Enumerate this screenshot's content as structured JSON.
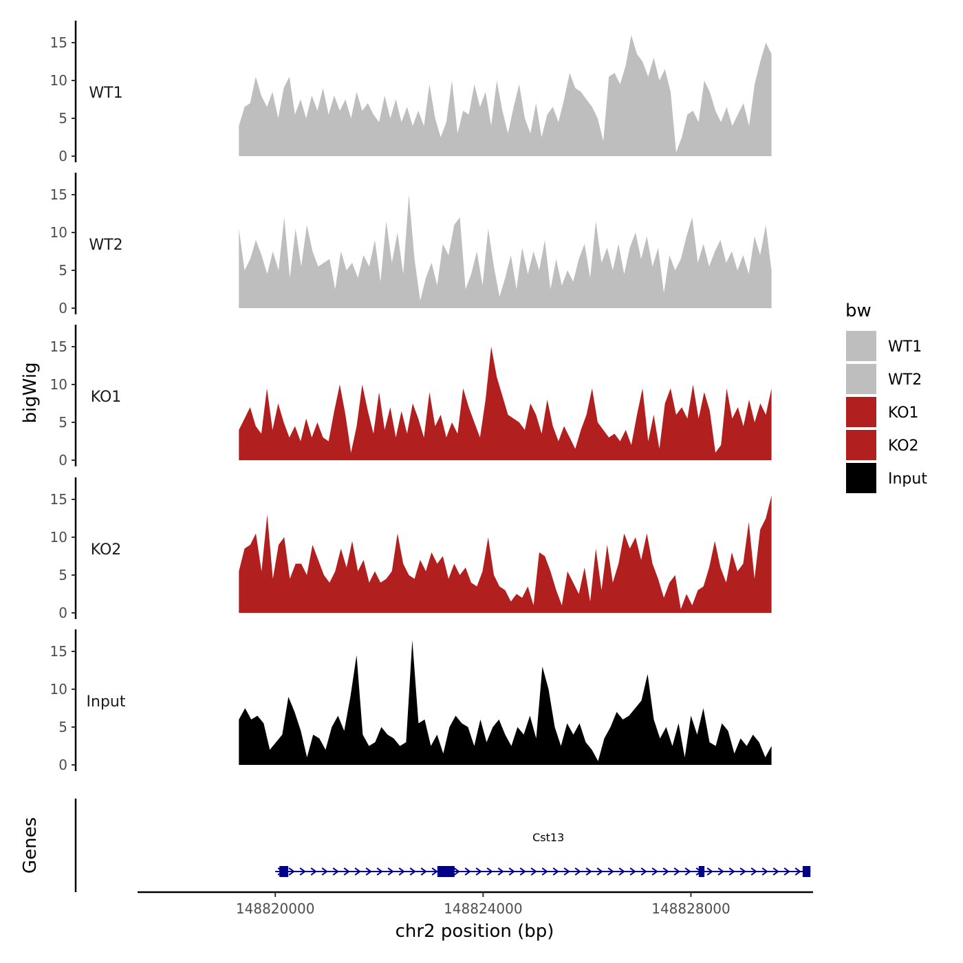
{
  "chart_data": {
    "type": "area",
    "title": "",
    "ylabel": "bigWig",
    "xlabel": "chr2 position (bp)",
    "xlim": [
      148817350,
      148830350
    ],
    "ylim": [
      0,
      17
    ],
    "y_ticks": [
      0,
      5,
      10,
      15
    ],
    "x_ticks": [
      148820000,
      148824000,
      148828000
    ],
    "x_tick_labels": [
      "148820000",
      "148824000",
      "148828000"
    ],
    "region_start": 148819300,
    "region_end": 148829550,
    "tracks": [
      {
        "name": "WT1",
        "color": "#bebebe",
        "values": [
          4.0,
          6.5,
          7.0,
          10.5,
          8.0,
          6.5,
          8.5,
          5.0,
          9.0,
          10.5,
          5.5,
          7.5,
          5.0,
          8.0,
          6.0,
          9.0,
          5.5,
          8.0,
          6.0,
          7.5,
          5.0,
          8.5,
          6.0,
          7.0,
          5.5,
          4.5,
          8.0,
          5.0,
          7.5,
          4.5,
          6.5,
          4.0,
          6.0,
          4.0,
          9.5,
          5.0,
          2.5,
          4.5,
          10.0,
          3.0,
          6.0,
          5.5,
          9.5,
          6.5,
          8.5,
          4.0,
          10.0,
          6.0,
          3.0,
          6.5,
          9.5,
          5.0,
          3.0,
          7.0,
          2.5,
          5.5,
          6.5,
          4.5,
          7.5,
          11.0,
          9.0,
          8.5,
          7.5,
          6.5,
          5.0,
          2.0,
          10.5,
          11.0,
          9.5,
          12.0,
          16.0,
          13.5,
          12.5,
          10.5,
          13.0,
          10.0,
          11.5,
          8.5,
          0.5,
          2.5,
          5.5,
          6.0,
          4.5,
          10.0,
          8.5,
          6.0,
          4.5,
          6.5,
          4.0,
          5.5,
          7.0,
          4.0,
          9.5,
          12.5,
          15.0,
          13.5
        ]
      },
      {
        "name": "WT2",
        "color": "#bebebe",
        "values": [
          10.5,
          5.0,
          6.5,
          9.0,
          7.0,
          4.5,
          7.5,
          5.0,
          12.0,
          4.0,
          10.5,
          5.5,
          11.0,
          7.5,
          5.5,
          6.0,
          6.5,
          2.5,
          7.5,
          5.0,
          6.0,
          4.0,
          7.0,
          5.5,
          9.0,
          3.5,
          11.5,
          6.0,
          10.0,
          4.5,
          15.0,
          6.5,
          1.0,
          4.0,
          6.0,
          3.0,
          8.5,
          7.0,
          11.0,
          12.0,
          2.5,
          4.5,
          7.5,
          3.0,
          10.5,
          5.5,
          1.5,
          4.0,
          7.0,
          2.5,
          8.0,
          4.5,
          7.5,
          5.0,
          9.0,
          2.5,
          6.5,
          3.0,
          5.0,
          3.5,
          6.5,
          8.5,
          4.0,
          11.5,
          6.0,
          8.0,
          5.0,
          8.5,
          4.5,
          8.0,
          10.0,
          6.5,
          9.5,
          5.5,
          8.0,
          2.0,
          7.0,
          5.0,
          6.5,
          9.5,
          12.0,
          6.0,
          8.5,
          5.5,
          7.5,
          9.0,
          6.0,
          7.5,
          5.0,
          7.0,
          4.5,
          9.5,
          7.0,
          11.0,
          5.0
        ]
      },
      {
        "name": "KO1",
        "color": "#b21f1f",
        "values": [
          4.0,
          5.5,
          7.0,
          4.5,
          3.5,
          9.5,
          4.0,
          7.5,
          5.0,
          3.0,
          4.5,
          2.5,
          5.5,
          3.0,
          5.0,
          3.0,
          2.5,
          6.5,
          10.0,
          6.0,
          1.0,
          4.5,
          10.0,
          6.5,
          3.5,
          9.0,
          4.0,
          7.0,
          3.0,
          6.5,
          3.5,
          7.5,
          5.5,
          3.0,
          9.0,
          4.5,
          6.0,
          3.0,
          5.0,
          3.5,
          9.5,
          7.0,
          5.0,
          3.0,
          8.0,
          15.0,
          11.0,
          8.5,
          6.0,
          5.5,
          5.0,
          4.0,
          7.5,
          6.0,
          3.5,
          8.0,
          4.5,
          2.5,
          4.5,
          3.0,
          1.5,
          4.0,
          6.0,
          9.5,
          5.0,
          4.0,
          3.0,
          3.5,
          2.5,
          4.0,
          2.0,
          6.0,
          9.5,
          2.5,
          6.0,
          1.5,
          7.5,
          9.5,
          6.0,
          7.0,
          5.5,
          10.0,
          5.5,
          9.0,
          6.5,
          1.0,
          2.0,
          9.5,
          5.5,
          7.0,
          4.5,
          8.0,
          5.0,
          7.5,
          6.0,
          9.5
        ]
      },
      {
        "name": "KO2",
        "color": "#b21f1f",
        "values": [
          5.5,
          8.5,
          9.0,
          10.5,
          5.5,
          13.0,
          4.5,
          9.0,
          10.0,
          4.5,
          6.5,
          6.5,
          5.0,
          9.0,
          7.0,
          5.0,
          4.0,
          5.5,
          8.5,
          6.0,
          9.5,
          5.5,
          7.0,
          4.0,
          5.5,
          4.0,
          4.5,
          5.5,
          10.5,
          6.5,
          5.0,
          4.5,
          7.0,
          5.5,
          8.0,
          6.5,
          7.5,
          4.5,
          6.5,
          5.0,
          6.0,
          4.0,
          3.5,
          5.5,
          10.0,
          5.0,
          3.5,
          3.0,
          1.5,
          2.5,
          2.0,
          3.5,
          1.0,
          8.0,
          7.5,
          5.5,
          3.0,
          1.0,
          5.5,
          4.0,
          2.5,
          6.0,
          1.5,
          8.5,
          3.0,
          9.0,
          4.0,
          6.5,
          10.5,
          8.5,
          10.0,
          7.0,
          10.5,
          6.5,
          4.5,
          2.0,
          4.0,
          5.0,
          0.5,
          2.5,
          1.0,
          3.0,
          3.5,
          6.0,
          9.5,
          6.0,
          4.0,
          8.0,
          5.5,
          6.5,
          12.0,
          4.5,
          11.0,
          12.5,
          15.5
        ]
      },
      {
        "name": "Input",
        "color": "#000000",
        "values": [
          6.0,
          7.5,
          6.0,
          6.5,
          5.5,
          2.0,
          3.0,
          4.0,
          9.0,
          7.0,
          4.5,
          1.0,
          4.0,
          3.5,
          2.0,
          5.0,
          6.5,
          4.5,
          9.0,
          14.5,
          4.0,
          2.5,
          3.0,
          5.0,
          4.0,
          3.5,
          2.5,
          3.0,
          16.5,
          5.5,
          6.0,
          2.5,
          4.0,
          1.5,
          5.0,
          6.5,
          5.5,
          5.0,
          2.5,
          6.0,
          3.0,
          5.0,
          6.0,
          4.0,
          2.5,
          5.0,
          4.0,
          6.5,
          3.5,
          13.0,
          10.0,
          5.0,
          2.5,
          5.5,
          4.0,
          5.5,
          3.0,
          2.0,
          0.5,
          3.5,
          5.0,
          7.0,
          6.0,
          6.5,
          7.5,
          8.5,
          12.0,
          6.0,
          3.5,
          5.0,
          2.5,
          5.5,
          1.0,
          6.5,
          4.0,
          7.5,
          3.0,
          2.5,
          5.5,
          4.5,
          1.5,
          3.5,
          2.5,
          4.0,
          3.0,
          1.0,
          2.5
        ]
      }
    ],
    "legend": {
      "title": "bw",
      "position": "right",
      "entries": [
        {
          "label": "WT1",
          "color": "#bebebe"
        },
        {
          "label": "WT2",
          "color": "#bebebe"
        },
        {
          "label": "KO1",
          "color": "#b21f1f"
        },
        {
          "label": "KO2",
          "color": "#b21f1f"
        },
        {
          "label": "Input",
          "color": "#000000"
        }
      ]
    },
    "gene_track": {
      "label": "Genes",
      "color": "#00008b",
      "genes": [
        {
          "name": "Cst13",
          "strand": "+",
          "start": 148820000,
          "end": 148830300,
          "exons": [
            [
              148820080,
              148820250
            ],
            [
              148823120,
              148823450
            ],
            [
              148828150,
              148828260
            ],
            [
              148830150,
              148830300
            ]
          ]
        }
      ]
    }
  }
}
